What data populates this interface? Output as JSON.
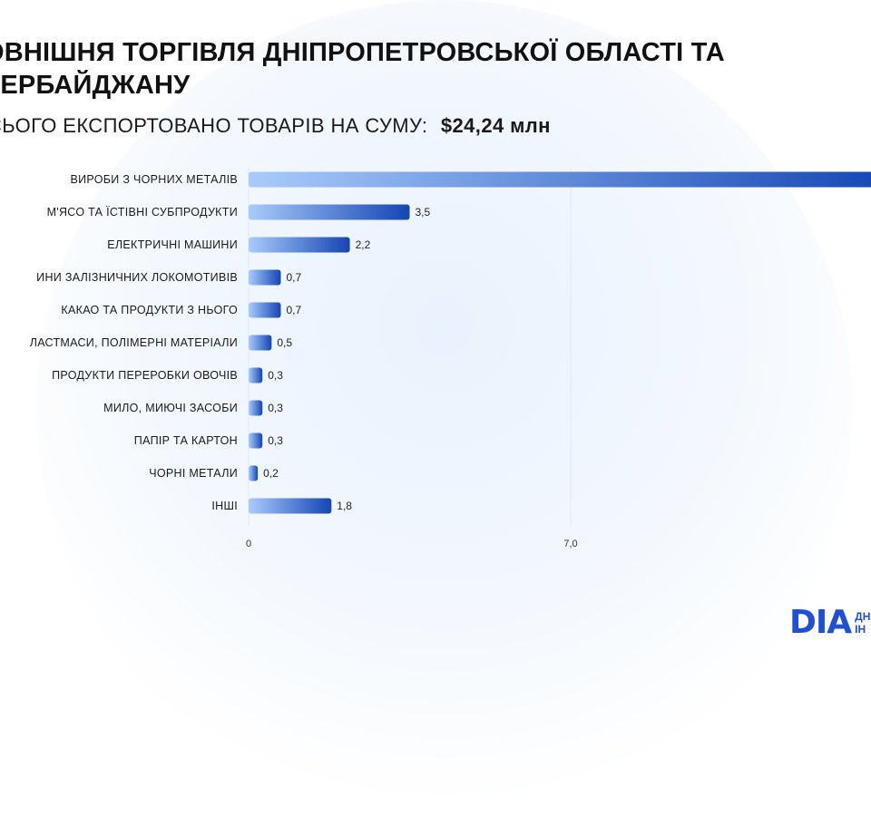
{
  "header": {
    "title": "ОВНІШНЯ ТОРГІВЛЯ ДНІПРОПЕТРОВСЬКОЇ ОБЛАСТІ ТА ЗЕРБАЙДЖАНУ",
    "subtitle_label": "СЬОГО ЕКСПОРТОВАНО ТОВАРІВ НА СУМУ:",
    "subtitle_value": "$24,24 млн"
  },
  "logo": {
    "mark": "DIA",
    "sub_line1": "ДН",
    "sub_line2": "ІН"
  },
  "colors": {
    "bar_light": "#a9cbfb",
    "bar_dark": "#1445b4",
    "grid": "#e4e8ee"
  },
  "chart_data": {
    "type": "bar",
    "orientation": "horizontal",
    "categories": [
      "ВИРОБИ З ЧОРНИХ МЕТАЛІВ",
      "М'ЯСО ТА ЇСТІВНІ СУБПРОДУКТИ",
      "ЕЛЕКТРИЧНІ МАШИНИ",
      "ИНИ ЗАЛІЗНИЧНИХ ЛОКОМОТИВІВ",
      "КАКАО ТА ПРОДУКТИ З НЬОГО",
      "ЛАСТМАСИ, ПОЛІМЕРНІ МАТЕРІАЛИ",
      "ПРОДУКТИ ПЕРЕРОБКИ ОВОЧІВ",
      "МИЛО, МИЮЧІ ЗАСОБИ",
      "ПАПІР ТА КАРТОН",
      "ЧОРНІ МЕТАЛИ",
      "ІНШІ"
    ],
    "values": [
      14.0,
      3.5,
      2.2,
      0.7,
      0.7,
      0.5,
      0.3,
      0.3,
      0.3,
      0.2,
      1.8
    ],
    "value_labels": [
      null,
      "3,5",
      "2,2",
      "0,7",
      "0,7",
      "0,5",
      "0,3",
      "0,3",
      "0,3",
      "0,2",
      "1,8"
    ],
    "xticks": [
      0,
      7.0
    ],
    "xtick_labels": [
      "0",
      "7,0"
    ],
    "xlim": [
      0,
      13.5
    ],
    "grid": true
  }
}
